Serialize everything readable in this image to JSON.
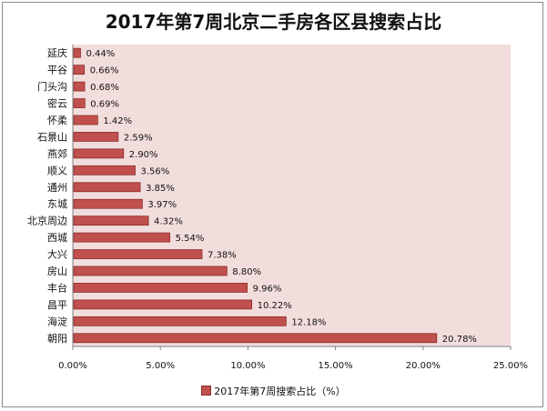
{
  "chart_data": {
    "type": "bar",
    "orientation": "horizontal",
    "title": "2017年第7周北京二手房各区县搜索占比",
    "categories": [
      "延庆",
      "平谷",
      "门头沟",
      "密云",
      "怀柔",
      "石景山",
      "燕郊",
      "顺义",
      "通州",
      "东城",
      "北京周边",
      "西城",
      "大兴",
      "房山",
      "丰台",
      "昌平",
      "海淀",
      "朝阳"
    ],
    "values": [
      0.44,
      0.66,
      0.68,
      0.69,
      1.42,
      2.59,
      2.9,
      3.56,
      3.85,
      3.97,
      4.32,
      5.54,
      7.38,
      8.8,
      9.96,
      10.22,
      12.18,
      20.78
    ],
    "value_labels": [
      "0.44%",
      "0.66%",
      "0.68%",
      "0.69%",
      "1.42%",
      "2.59%",
      "2.90%",
      "3.56%",
      "3.85%",
      "3.97%",
      "4.32%",
      "5.54%",
      "7.38%",
      "8.80%",
      "9.96%",
      "10.22%",
      "12.18%",
      "20.78%"
    ],
    "xlim": [
      0,
      25
    ],
    "x_ticks": [
      0,
      5,
      10,
      15,
      20,
      25
    ],
    "x_tick_labels": [
      "0.00%",
      "5.00%",
      "10.00%",
      "15.00%",
      "20.00%",
      "25.00%"
    ],
    "series_name": "2017年第7周搜索占比（%）",
    "legend_position": "bottom",
    "bar_color": "#c0504d",
    "plot_bg_color": "#f2dddd"
  }
}
